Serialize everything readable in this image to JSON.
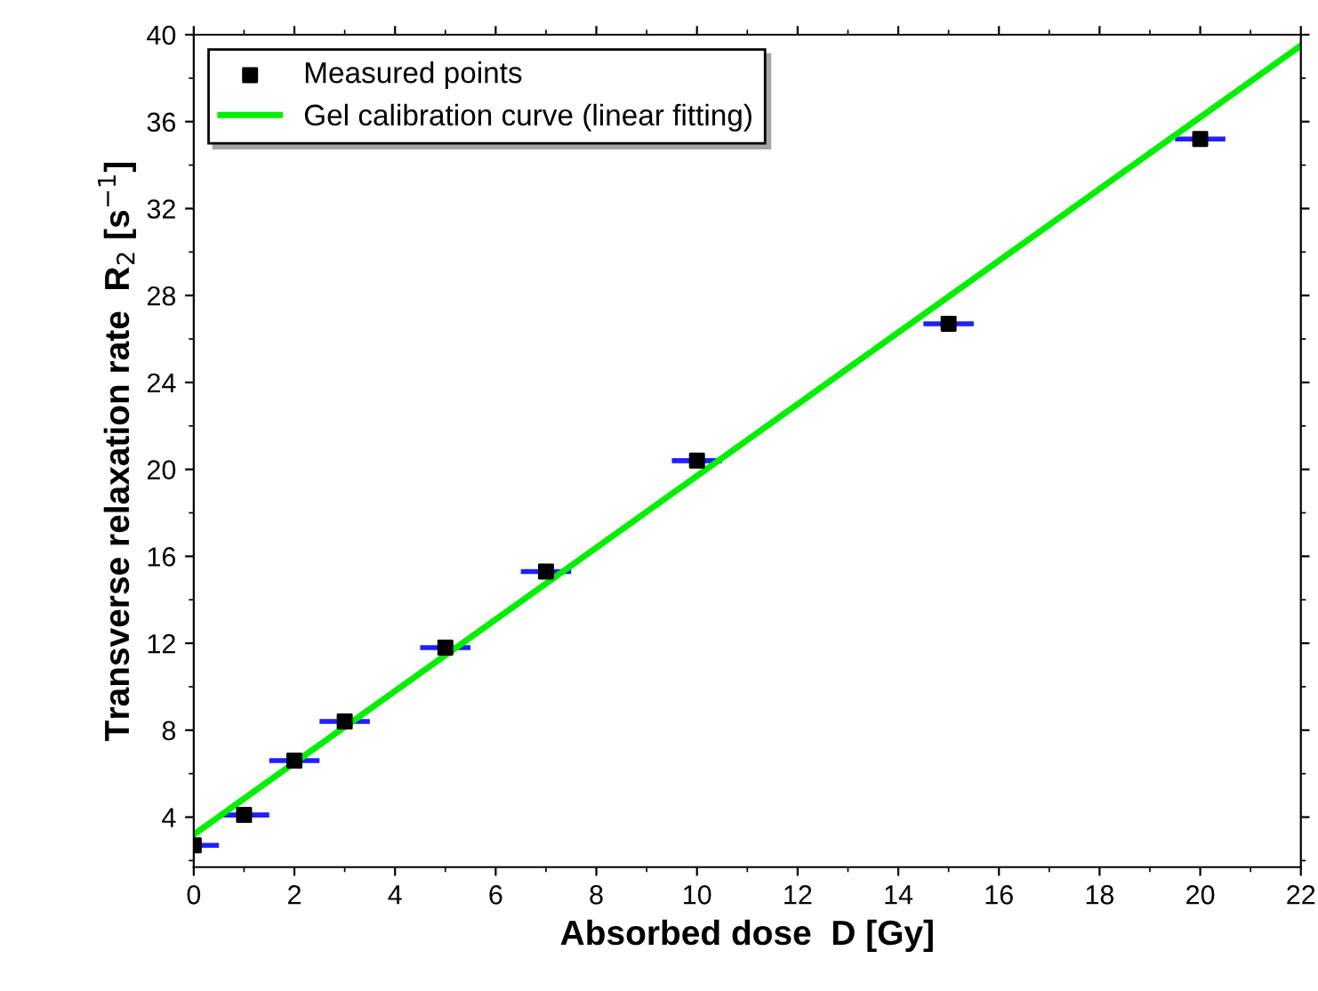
{
  "chart_data": {
    "type": "scatter",
    "xlabel": "Absorbed dose  D [Gy]",
    "ylabel": "Transverse relaxation rate  R$_{2}$ [s$^{−1}$]",
    "xlim": [
      0,
      22
    ],
    "ylim": [
      1.7,
      40
    ],
    "xticks": [
      0,
      2,
      4,
      6,
      8,
      10,
      12,
      14,
      16,
      18,
      20,
      22
    ],
    "yticks": [
      4,
      8,
      12,
      16,
      20,
      24,
      28,
      32,
      36,
      40
    ],
    "grid": false,
    "legend": "top left",
    "marker": "square",
    "series": [
      {
        "name": "Measured points",
        "color": "#000000",
        "x": [
          0,
          1,
          2,
          3,
          5,
          7,
          10,
          15,
          20
        ],
        "values": [
          2.7,
          4.1,
          6.6,
          8.4,
          11.8,
          15.3,
          20.4,
          26.7,
          35.2
        ],
        "xerrors": [
          0.5,
          0.5,
          0.5,
          0.5,
          0.5,
          0.5,
          0.5,
          0.5,
          0.5
        ]
      },
      {
        "name": "Gel calibration curve (linear fitting)",
        "type": "line",
        "color": "#00ee00",
        "x": [
          0,
          22
        ],
        "values": [
          3.2,
          39.5
        ],
        "marker": "none",
        "line_style": "solid"
      }
    ]
  }
}
